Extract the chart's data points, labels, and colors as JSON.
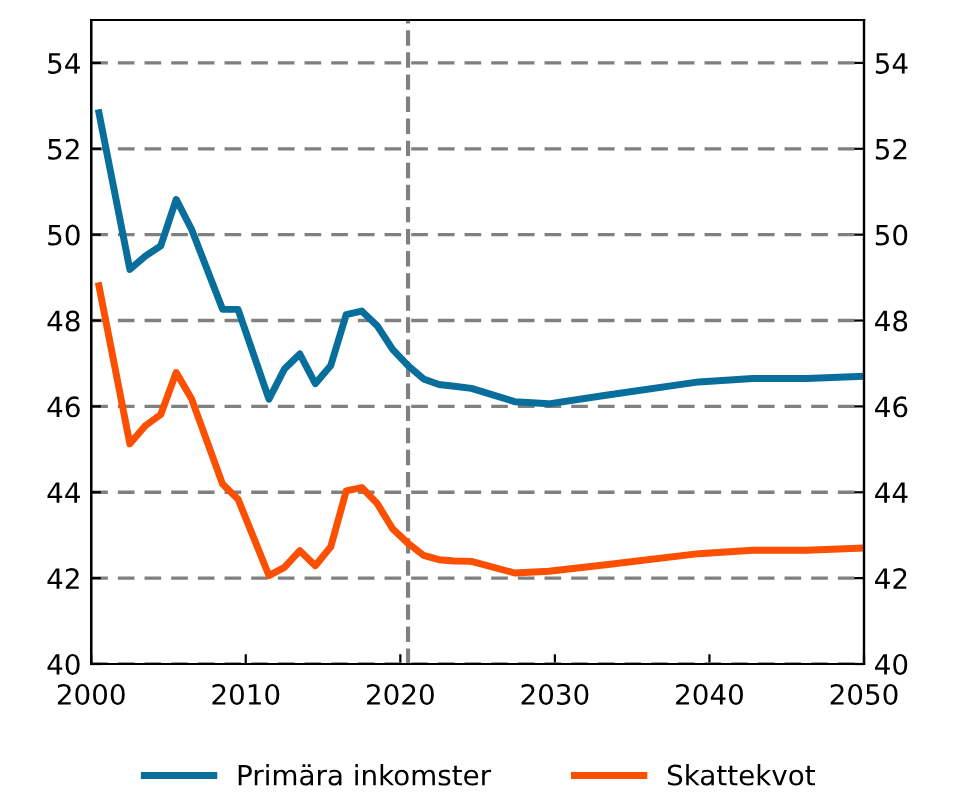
{
  "chart_data": {
    "type": "line",
    "series": [
      {
        "name": "Primära inkomster",
        "color": "#086f9c",
        "x": [
          2000.5,
          2002.5,
          2003.5,
          2004.5,
          2005.5,
          2006.5,
          2008.5,
          2009.5,
          2011.5,
          2012.5,
          2013.5,
          2014.5,
          2015.5,
          2016.5,
          2017.5,
          2018.5,
          2019.5,
          2020.5,
          2021.5,
          2022.5,
          2023.5,
          2024.6,
          2027.4,
          2029.6,
          2033.3,
          2039.3,
          2042.8,
          2046.3,
          2050
        ],
        "values": [
          52.84,
          49.19,
          49.5,
          49.74,
          50.82,
          50.12,
          48.26,
          48.26,
          46.17,
          46.87,
          47.22,
          46.53,
          46.95,
          48.14,
          48.22,
          47.88,
          47.33,
          46.95,
          46.64,
          46.51,
          46.47,
          46.42,
          46.11,
          46.06,
          46.26,
          46.57,
          46.65,
          46.65,
          46.7
        ]
      },
      {
        "name": "Skattekvot",
        "color": "#fc4f00",
        "x": [
          2000.5,
          2002.5,
          2003.5,
          2004.5,
          2005.5,
          2006.5,
          2008.5,
          2009.5,
          2011.5,
          2012.5,
          2013.5,
          2014.5,
          2015.5,
          2016.5,
          2017.5,
          2018.5,
          2019.5,
          2020.5,
          2021.5,
          2022.5,
          2023.5,
          2024.6,
          2027.4,
          2029.6,
          2033.3,
          2039.3,
          2042.8,
          2046.3,
          2050
        ],
        "values": [
          48.81,
          45.13,
          45.55,
          45.81,
          46.79,
          46.17,
          44.19,
          43.84,
          42.06,
          42.25,
          42.64,
          42.29,
          42.73,
          44.03,
          44.11,
          43.74,
          43.15,
          42.81,
          42.53,
          42.43,
          42.4,
          42.39,
          42.12,
          42.16,
          42.31,
          42.57,
          42.65,
          42.65,
          42.7
        ]
      }
    ],
    "xlim": [
      2000,
      2050
    ],
    "xticks": [
      2000,
      2010,
      2020,
      2030,
      2040,
      2050
    ],
    "ylim": [
      40,
      55
    ],
    "yticks": [
      40,
      42,
      44,
      46,
      48,
      50,
      52,
      54
    ],
    "y2lim": [
      40,
      55
    ],
    "y2ticks": [
      40,
      42,
      44,
      46,
      48,
      50,
      52,
      54
    ],
    "ref_lines": [
      {
        "axis": "x",
        "value": 2020.5,
        "color": "#808080",
        "line_style": "dashed"
      }
    ],
    "grid": "y",
    "legend": "bottom",
    "marker": "none",
    "line_style": "solid"
  }
}
